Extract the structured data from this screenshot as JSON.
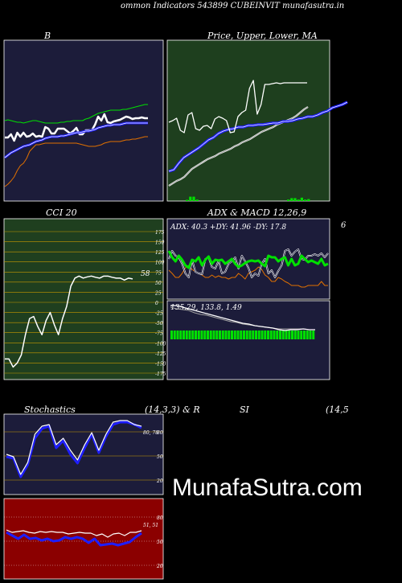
{
  "header": {
    "title": "ommon  Indicators 543899 CUBEINVIT munafasutra.in",
    "watermark": "MunafaSutra.com"
  },
  "colors": {
    "bb_panel": "#1c1c3a",
    "price_panel": "#1e3f1e",
    "cci_panel": "#1f3f1f",
    "dark_panel": "#1c1c3a",
    "rsi_panel": "#8b0000",
    "white": "#ffffff",
    "blue": "#1e1eff",
    "green": "#00e000",
    "orange": "#e07000",
    "gray": "#a0a0a0"
  },
  "chart_data": [
    {
      "id": "bb",
      "type": "line",
      "title": "B",
      "series": [
        {
          "color": "white",
          "values": [
            171,
            171,
            167,
            175,
            165,
            170,
            165,
            170,
            169,
            166,
            170,
            169,
            170,
            158,
            160,
            166,
            166,
            160,
            160,
            160,
            163,
            166,
            163,
            159,
            167,
            167,
            162,
            162,
            162,
            155,
            145,
            150,
            142,
            152,
            153,
            151,
            150,
            149,
            147,
            145,
            146,
            148,
            147,
            147,
            146,
            147,
            147
          ]
        },
        {
          "color": "green",
          "values": [
            150,
            149,
            150,
            151,
            152,
            152,
            153,
            152,
            151,
            150,
            150,
            151,
            152,
            153,
            153,
            153,
            153,
            153,
            152,
            152,
            151,
            151,
            150,
            150,
            150,
            150,
            148,
            147,
            145,
            143,
            141,
            140,
            139,
            138,
            137,
            137,
            137,
            137,
            136,
            136,
            135,
            134,
            133,
            132,
            131,
            130,
            130
          ]
        },
        {
          "color": "blue",
          "values": [
            196,
            193,
            190,
            188,
            186,
            184,
            182,
            181,
            180,
            178,
            176,
            175,
            174,
            172,
            171,
            170,
            170,
            170,
            169,
            169,
            168,
            167,
            166,
            165,
            165,
            164,
            163,
            163,
            162,
            161,
            159,
            158,
            157,
            156,
            156,
            155,
            155,
            155,
            154,
            153,
            153,
            153,
            153,
            153,
            153,
            153,
            153
          ]
        },
        {
          "color": "orange",
          "values": [
            232,
            229,
            225,
            220,
            212,
            206,
            203,
            197,
            188,
            184,
            180,
            180,
            179,
            178,
            178,
            178,
            178,
            178,
            178,
            178,
            178,
            178,
            178,
            178,
            179,
            180,
            181,
            182,
            182,
            182,
            181,
            180,
            178,
            177,
            176,
            176,
            176,
            176,
            175,
            174,
            174,
            173,
            173,
            172,
            171,
            170,
            170
          ]
        }
      ]
    },
    {
      "id": "price",
      "type": "line",
      "title": "Price,  Upper, Lower, MA",
      "series": [
        {
          "color": "white",
          "values": [
            152,
            150,
            147,
            162,
            165,
            143,
            140,
            160,
            162,
            157,
            156,
            160,
            148,
            145,
            147,
            150,
            165,
            164,
            145,
            140,
            137,
            110,
            100,
            142,
            130,
            105,
            105,
            104,
            103,
            104,
            103,
            103,
            103,
            103,
            103,
            103,
            103
          ]
        },
        {
          "color": "blue",
          "values": [
            213,
            211,
            203,
            196,
            192,
            188,
            184,
            179,
            174,
            171,
            166,
            163,
            161,
            160,
            158,
            158,
            156,
            156,
            155,
            155,
            154,
            153,
            153,
            151,
            151,
            150,
            148,
            147,
            145,
            145,
            143,
            140,
            138,
            134,
            132,
            130,
            127
          ]
        },
        {
          "color": "gray",
          "values": [
            231,
            228,
            225,
            223,
            220,
            215,
            210,
            207,
            204,
            201,
            198,
            196,
            194,
            191,
            189,
            187,
            185,
            182,
            180,
            177,
            175,
            173,
            170,
            167,
            164,
            162,
            160,
            158,
            155,
            153,
            151,
            149,
            147,
            144,
            140,
            136,
            133
          ]
        }
      ],
      "volume": [
        0,
        0,
        0,
        0,
        0,
        0.25,
        0.9,
        0.9,
        0.3,
        0,
        0,
        0,
        0,
        0,
        0,
        0,
        0,
        0,
        0,
        0,
        0,
        0,
        0,
        0,
        0,
        0,
        0,
        0,
        0,
        0,
        0,
        0,
        0,
        0,
        0,
        0.3,
        0.6,
        0.6,
        0.3,
        0.7,
        0.3,
        0.4
      ]
    },
    {
      "id": "cci",
      "type": "line",
      "title": "CCI 20",
      "ylim": [
        -175,
        175
      ],
      "ticks": [
        "175",
        "150",
        "125",
        "100",
        "75",
        "50",
        "25",
        "0",
        "-25",
        "-50",
        "-75",
        "-100",
        "-125",
        "-150",
        "-175"
      ],
      "last_label": "58",
      "series": [
        {
          "color": "white",
          "values": [
            -140,
            -140,
            -160,
            -150,
            -130,
            -80,
            -40,
            -35,
            -60,
            -80,
            -45,
            -25,
            -55,
            -80,
            -40,
            -10,
            40,
            60,
            65,
            60,
            63,
            65,
            62,
            60,
            65,
            65,
            62,
            60,
            60,
            55,
            60,
            58
          ]
        }
      ]
    },
    {
      "id": "adx",
      "type": "line",
      "title": "ADX  & MACD 12,26,9",
      "readout": "ADX: 40.3  +DY: 41.96  -DY: 17.8",
      "right_label": "6",
      "series": [
        {
          "color": "green",
          "values": [
            312,
            320,
            325,
            318,
            323,
            330,
            333,
            323,
            325,
            320,
            330,
            323,
            319,
            328,
            323,
            324,
            323,
            328,
            325,
            322,
            328,
            332,
            330,
            327,
            325,
            324,
            325,
            324,
            328,
            331,
            318,
            320,
            320,
            325,
            322,
            320,
            330,
            322,
            330,
            328,
            318,
            322,
            326,
            324,
            326,
            328,
            322,
            330,
            328
          ]
        },
        {
          "color": "white",
          "values": [
            322,
            312,
            318,
            320,
            328,
            340,
            345,
            323,
            338,
            340,
            341,
            322,
            320,
            332,
            334,
            324,
            340,
            338,
            328,
            325,
            320,
            334,
            318,
            325,
            333,
            345,
            340,
            343,
            328,
            322,
            340,
            336,
            345,
            337,
            330,
            312,
            310,
            318,
            313,
            310,
            322,
            323,
            318,
            318,
            316,
            318,
            315,
            320,
            315
          ]
        },
        {
          "color": "orange",
          "values": [
            336,
            340,
            345,
            345,
            340,
            333,
            330,
            335,
            338,
            340,
            342,
            345,
            345,
            342,
            345,
            343,
            345,
            345,
            347,
            345,
            345,
            340,
            343,
            347,
            340,
            338,
            336,
            332,
            335,
            342,
            345,
            350,
            350,
            345,
            347,
            350,
            352,
            355,
            355,
            355,
            357,
            357,
            355,
            355,
            355,
            355,
            350,
            355,
            355
          ]
        }
      ]
    },
    {
      "id": "macd",
      "type": "bar",
      "readout": "135.29,  133.8,  1.49",
      "series": [
        {
          "color": "white",
          "values": [
            380,
            380,
            382,
            384,
            386,
            388,
            390,
            392,
            394,
            396,
            398,
            400,
            402,
            403,
            405,
            406,
            407,
            408,
            410,
            411,
            410,
            410,
            409,
            410,
            410
          ]
        },
        {
          "color": "gray",
          "values": [
            382,
            384,
            385,
            386,
            389,
            391,
            392,
            394,
            396,
            398,
            400,
            401,
            403,
            404,
            405,
            406,
            407,
            408,
            409,
            409,
            409,
            409,
            409,
            410,
            410
          ]
        }
      ],
      "hist": [
        412,
        413,
        413,
        413,
        414,
        414,
        414,
        415,
        415,
        415,
        415,
        415,
        415,
        415,
        416,
        416,
        416,
        416,
        416,
        416,
        416,
        416,
        416,
        416,
        416,
        416,
        416,
        416,
        416,
        416,
        416,
        416,
        416,
        416,
        416,
        416,
        416,
        416,
        416,
        416,
        416,
        416,
        416,
        416,
        416,
        416,
        416,
        416
      ]
    },
    {
      "id": "stoch",
      "type": "line",
      "title": "Stochastics",
      "params": "(14,3,3) & R",
      "ticks": [
        "80",
        "50",
        "20"
      ],
      "last_label": "80, 78",
      "series": [
        {
          "color": "white",
          "values": [
            563,
            568,
            590,
            575,
            530,
            540,
            537,
            553,
            545,
            560,
            572,
            553,
            538,
            560,
            540,
            550,
            547,
            535,
            530,
            530,
            528,
            525,
            522
          ]
        },
        {
          "color": "blue",
          "values": [
            565,
            567,
            580,
            585,
            555,
            540,
            545,
            555,
            550,
            563,
            570,
            560,
            550,
            560,
            548,
            553,
            550,
            537,
            530,
            530,
            528,
            527,
            525
          ]
        }
      ]
    },
    {
      "id": "rsi",
      "type": "line",
      "title": "SI",
      "params": "(14,5",
      "ticks": [
        "80",
        "50",
        "20"
      ],
      "last_label": "51, 51",
      "series": [
        {
          "color": "white",
          "values": [
            659,
            662,
            661,
            660,
            662,
            663,
            661,
            662,
            661,
            662,
            662,
            664,
            663,
            662,
            663,
            663,
            666,
            664,
            668,
            664,
            663,
            666,
            662,
            662,
            660
          ]
        },
        {
          "color": "blue",
          "values": [
            662,
            666,
            670,
            665,
            670,
            669,
            672,
            670,
            673,
            672,
            668,
            670,
            668,
            670,
            675,
            670,
            678,
            677,
            676,
            678,
            676,
            674,
            668,
            663
          ]
        }
      ]
    }
  ]
}
